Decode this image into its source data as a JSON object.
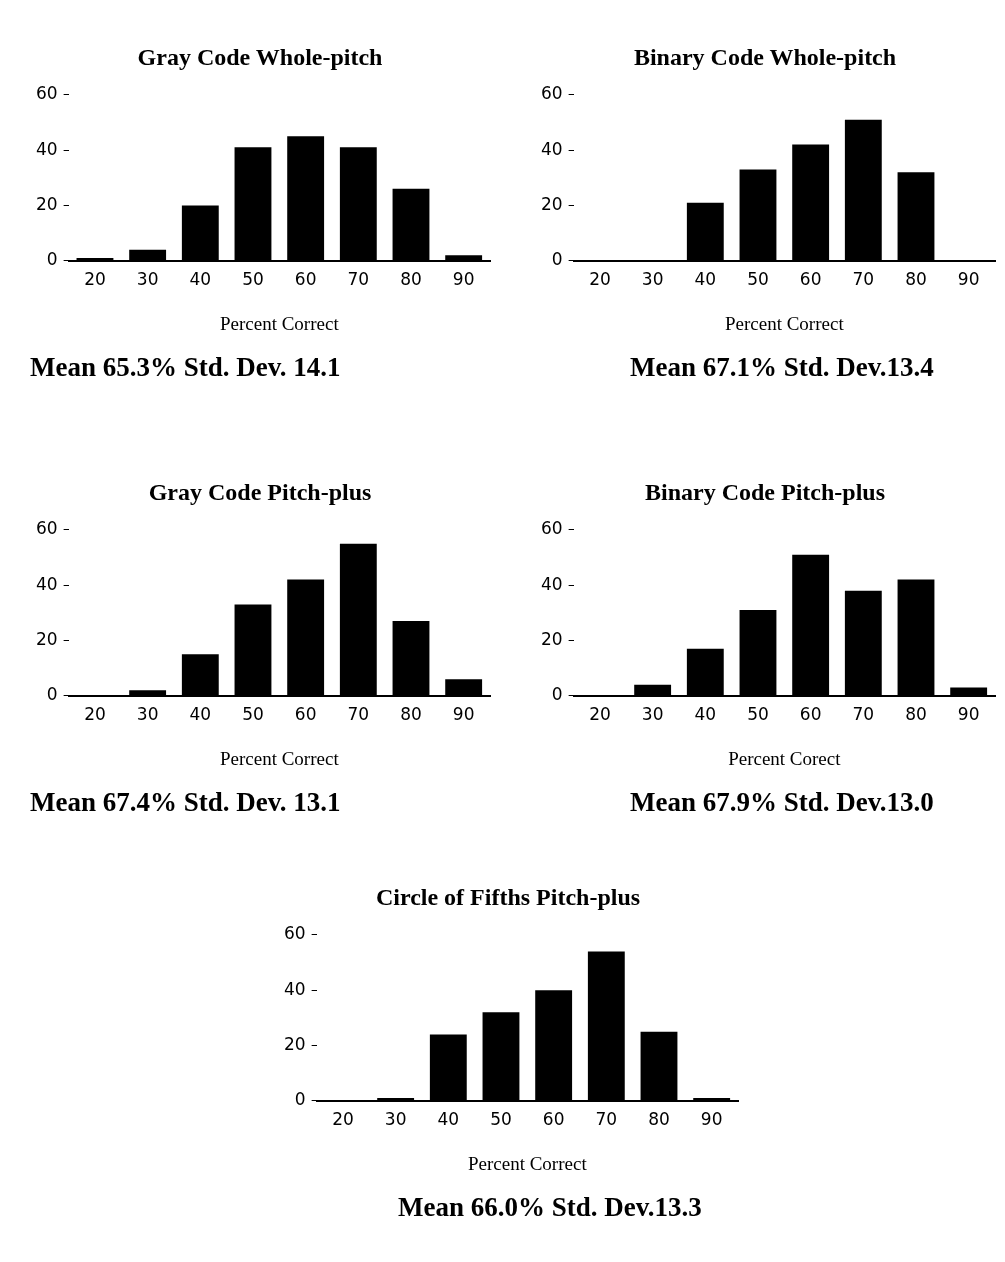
{
  "chart_data": [
    {
      "type": "bar",
      "title": "Gray Code Whole-pitch",
      "xlabel": "Percent Correct",
      "categories": [
        "20",
        "30",
        "40",
        "50",
        "60",
        "70",
        "80",
        "90"
      ],
      "values": [
        1,
        4,
        20,
        41,
        45,
        41,
        26,
        2
      ],
      "color": "#000000",
      "ylim": [
        0,
        60
      ],
      "yticks": [
        0,
        20,
        40,
        60
      ],
      "annotations": [
        "Mean 65.3%  Std. Dev. 14.1"
      ]
    },
    {
      "type": "bar",
      "title": "Binary Code Whole-pitch",
      "xlabel": "Percent Correct",
      "categories": [
        "20",
        "30",
        "40",
        "50",
        "60",
        "70",
        "80",
        "90"
      ],
      "values": [
        0,
        0,
        21,
        33,
        42,
        51,
        32,
        0
      ],
      "color": "#000000",
      "ylim": [
        0,
        60
      ],
      "yticks": [
        0,
        20,
        40,
        60
      ],
      "annotations": [
        "Mean 67.1%  Std. Dev.13.4"
      ]
    },
    {
      "type": "bar",
      "title": "Gray Code Pitch-plus",
      "xlabel": "Percent Correct",
      "categories": [
        "20",
        "30",
        "40",
        "50",
        "60",
        "70",
        "80",
        "90"
      ],
      "values": [
        0,
        2,
        15,
        33,
        42,
        55,
        27,
        6
      ],
      "color": "#000000",
      "ylim": [
        0,
        60
      ],
      "yticks": [
        0,
        20,
        40,
        60
      ],
      "annotations": [
        "Mean 67.4%  Std. Dev. 13.1"
      ]
    },
    {
      "type": "bar",
      "title": "Binary Code Pitch-plus",
      "xlabel": "Percent Corect",
      "categories": [
        "20",
        "30",
        "40",
        "50",
        "60",
        "70",
        "80",
        "90"
      ],
      "values": [
        0,
        4,
        17,
        31,
        51,
        38,
        42,
        3
      ],
      "color": "#000000",
      "ylim": [
        0,
        60
      ],
      "yticks": [
        0,
        20,
        40,
        60
      ],
      "annotations": [
        "Mean 67.9%  Std. Dev.13.0"
      ]
    },
    {
      "type": "bar",
      "title": "Circle of Fifths Pitch-plus",
      "xlabel": "Percent Correct",
      "categories": [
        "20",
        "30",
        "40",
        "50",
        "60",
        "70",
        "80",
        "90"
      ],
      "values": [
        0,
        1,
        24,
        32,
        40,
        54,
        25,
        1
      ],
      "color": "#000000",
      "ylim": [
        0,
        60
      ],
      "yticks": [
        0,
        20,
        40,
        60
      ],
      "annotations": [
        "Mean 66.0%  Std. Dev.13.3"
      ]
    }
  ]
}
